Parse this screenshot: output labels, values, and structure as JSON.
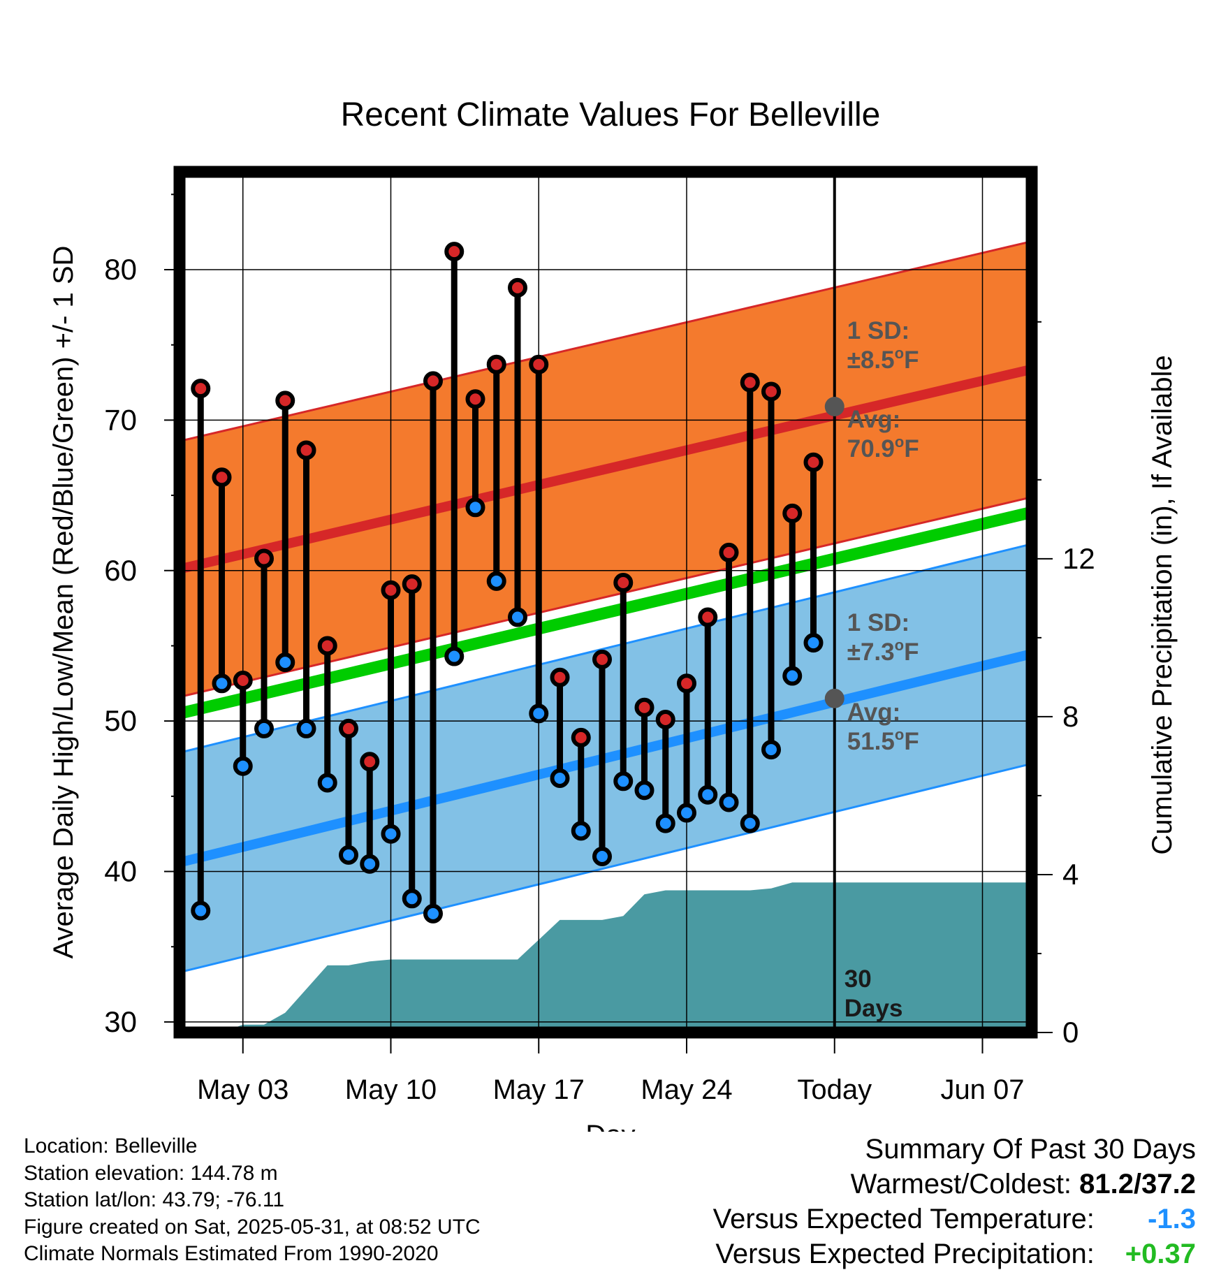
{
  "chart_data": {
    "type": "line",
    "title": "Recent Climate Values For Belleville",
    "xlabel": "Day",
    "ylabel": "Average Daily High/Low/Mean (Red/Blue/Green) +/- 1 SD",
    "y2label": "Cumulative Precipitation (in), If Available",
    "x_tick_labels": [
      "May 03",
      "May 10",
      "May 17",
      "May 24",
      "Today",
      "Jun 07"
    ],
    "x_tick_days": [
      3,
      10,
      17,
      24,
      31,
      38
    ],
    "x_range_days": [
      0,
      41.3
    ],
    "ylim": [
      29.3,
      86.5
    ],
    "y_ticks": [
      30,
      40,
      50,
      60,
      70,
      80
    ],
    "y2lim": [
      0,
      21.8
    ],
    "y2_ticks": [
      0,
      4,
      8,
      12
    ],
    "grid": true,
    "today_day": 31,
    "period_label": "30\nDays",
    "colors": {
      "high": "#d62728",
      "low": "#1e90ff",
      "mean": "#00cc00",
      "high_band": "#f47a2d",
      "low_band": "#82c1e6",
      "precip": "#4a9aa2"
    },
    "normals": {
      "days": [
        0,
        41.3
      ],
      "high_avg": [
        60.1,
        73.7
      ],
      "high_sd": 8.5,
      "low_avg": [
        40.6,
        54.8
      ],
      "low_sd": 7.3,
      "mean_avg": [
        50.5,
        64.2
      ]
    },
    "annotations": {
      "high_sd": "1 SD:\n±8.5°F",
      "high_avg": "Avg:\n70.9°F",
      "low_sd": "1 SD:\n±7.3°F",
      "low_avg": "Avg:\n51.5°F",
      "today_high": 70.9,
      "today_low": 51.5
    },
    "days": [
      1,
      2,
      3,
      4,
      5,
      6,
      7,
      8,
      9,
      10,
      11,
      12,
      13,
      14,
      15,
      16,
      17,
      18,
      19,
      20,
      21,
      22,
      23,
      24,
      25,
      26,
      27,
      28,
      29,
      30
    ],
    "highs": [
      72.1,
      66.2,
      52.7,
      60.8,
      71.3,
      68.0,
      55.0,
      49.5,
      47.3,
      58.7,
      59.1,
      72.6,
      81.2,
      71.4,
      73.7,
      78.8,
      73.7,
      52.9,
      48.9,
      54.1,
      59.2,
      50.9,
      50.1,
      52.5,
      56.9,
      61.2,
      72.5,
      71.9,
      63.8,
      67.2
    ],
    "lows": [
      37.4,
      52.5,
      47.0,
      49.5,
      53.9,
      49.5,
      45.9,
      41.1,
      40.5,
      42.5,
      38.2,
      37.2,
      54.3,
      64.2,
      59.3,
      56.9,
      50.5,
      46.2,
      42.7,
      41.0,
      46.0,
      45.4,
      43.2,
      43.9,
      45.1,
      44.6,
      43.2,
      48.1,
      53.0,
      55.2
    ],
    "precip_days": [
      0,
      2,
      3,
      4,
      5,
      6,
      7,
      8,
      9,
      10,
      12,
      13,
      14,
      15,
      16,
      17,
      18,
      19,
      20,
      21,
      22,
      23,
      24,
      25,
      26,
      27,
      28,
      29,
      30,
      31,
      41.3
    ],
    "precip_cum": [
      0,
      0,
      0.2,
      0.2,
      0.5,
      1.1,
      1.7,
      1.7,
      1.8,
      1.85,
      1.85,
      1.85,
      1.85,
      1.85,
      1.85,
      2.35,
      2.85,
      2.85,
      2.85,
      2.95,
      3.5,
      3.6,
      3.6,
      3.6,
      3.6,
      3.6,
      3.65,
      3.8,
      3.8,
      3.8,
      3.8
    ]
  },
  "footer": {
    "location": "Location: Belleville",
    "elevation": "Station elevation: 144.78 m",
    "latlon": "Station lat/lon: 43.79; -76.11",
    "created": "Figure created on Sat, 2025-05-31, at 08:52 UTC",
    "normals": "Climate Normals Estimated From 1990-2020"
  },
  "summary": {
    "title": "Summary Of Past 30 Days",
    "warm_label": "Warmest/Coldest:",
    "warm_value": "81.2/37.2",
    "temp_label": "Versus Expected Temperature:",
    "temp_value": "-1.3",
    "temp_color": "#1e90ff",
    "precip_label": "Versus Expected Precipitation:",
    "precip_value": "+0.37",
    "precip_color": "#22bb22"
  }
}
